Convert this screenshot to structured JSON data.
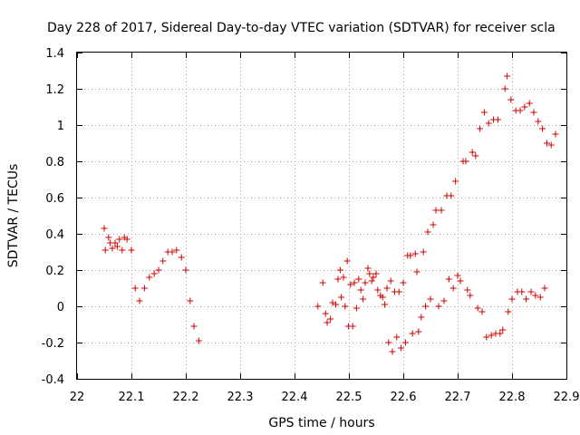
{
  "chart_data": {
    "type": "scatter",
    "title": "Day 228 of 2017, Sidereal Day-to-day VTEC variation (SDTVAR) for receiver scla",
    "xlabel": "GPS time / hours",
    "ylabel": "SDTVAR / TECUs",
    "xlim": [
      22,
      22.9
    ],
    "ylim": [
      -0.4,
      1.4
    ],
    "xticks": [
      "22",
      "22.1",
      "22.2",
      "22.3",
      "22.4",
      "22.5",
      "22.6",
      "22.7",
      "22.8",
      "22.9"
    ],
    "yticks": [
      "-0.4",
      "-0.2",
      "0",
      "0.2",
      "0.4",
      "0.6",
      "0.8",
      "1",
      "1.2",
      "1.4"
    ],
    "grid": true,
    "marker": "+",
    "color": "#d00000",
    "series": [
      {
        "name": "SDTVAR",
        "points": [
          [
            22.05,
            0.43
          ],
          [
            22.052,
            0.31
          ],
          [
            22.058,
            0.38
          ],
          [
            22.061,
            0.35
          ],
          [
            22.065,
            0.32
          ],
          [
            22.07,
            0.35
          ],
          [
            22.074,
            0.33
          ],
          [
            22.078,
            0.37
          ],
          [
            22.083,
            0.31
          ],
          [
            22.087,
            0.38
          ],
          [
            22.092,
            0.37
          ],
          [
            22.1,
            0.31
          ],
          [
            22.107,
            0.1
          ],
          [
            22.115,
            0.03
          ],
          [
            22.124,
            0.1
          ],
          [
            22.133,
            0.16
          ],
          [
            22.142,
            0.18
          ],
          [
            22.15,
            0.2
          ],
          [
            22.158,
            0.25
          ],
          [
            22.167,
            0.3
          ],
          [
            22.175,
            0.3
          ],
          [
            22.183,
            0.31
          ],
          [
            22.192,
            0.27
          ],
          [
            22.2,
            0.2
          ],
          [
            22.208,
            0.03
          ],
          [
            22.215,
            -0.11
          ],
          [
            22.224,
            -0.19
          ],
          [
            22.443,
            0.0
          ],
          [
            22.452,
            0.13
          ],
          [
            22.457,
            -0.04
          ],
          [
            22.46,
            -0.09
          ],
          [
            22.466,
            -0.07
          ],
          [
            22.47,
            0.02
          ],
          [
            22.476,
            0.01
          ],
          [
            22.48,
            0.15
          ],
          [
            22.484,
            0.2
          ],
          [
            22.486,
            0.05
          ],
          [
            22.49,
            0.16
          ],
          [
            22.493,
            0.0
          ],
          [
            22.497,
            0.25
          ],
          [
            22.499,
            -0.11
          ],
          [
            22.503,
            0.12
          ],
          [
            22.507,
            -0.11
          ],
          [
            22.51,
            0.13
          ],
          [
            22.514,
            -0.01
          ],
          [
            22.518,
            0.15
          ],
          [
            22.522,
            0.09
          ],
          [
            22.526,
            0.04
          ],
          [
            22.53,
            0.13
          ],
          [
            22.535,
            0.21
          ],
          [
            22.538,
            0.18
          ],
          [
            22.542,
            0.14
          ],
          [
            22.545,
            0.16
          ],
          [
            22.55,
            0.18
          ],
          [
            22.553,
            0.09
          ],
          [
            22.558,
            0.06
          ],
          [
            22.562,
            0.05
          ],
          [
            22.566,
            0.01
          ],
          [
            22.57,
            0.1
          ],
          [
            22.573,
            -0.2
          ],
          [
            22.577,
            0.14
          ],
          [
            22.58,
            -0.25
          ],
          [
            22.584,
            0.08
          ],
          [
            22.588,
            -0.17
          ],
          [
            22.592,
            0.08
          ],
          [
            22.596,
            -0.23
          ],
          [
            22.6,
            0.13
          ],
          [
            22.604,
            -0.2
          ],
          [
            22.608,
            0.28
          ],
          [
            22.613,
            0.28
          ],
          [
            22.617,
            -0.15
          ],
          [
            22.622,
            0.29
          ],
          [
            22.625,
            0.19
          ],
          [
            22.628,
            -0.14
          ],
          [
            22.633,
            -0.06
          ],
          [
            22.637,
            0.3
          ],
          [
            22.641,
            0.0
          ],
          [
            22.645,
            0.41
          ],
          [
            22.65,
            0.04
          ],
          [
            22.655,
            0.45
          ],
          [
            22.66,
            0.53
          ],
          [
            22.665,
            0.0
          ],
          [
            22.67,
            0.53
          ],
          [
            22.675,
            0.03
          ],
          [
            22.68,
            0.61
          ],
          [
            22.684,
            0.15
          ],
          [
            22.688,
            0.61
          ],
          [
            22.692,
            0.1
          ],
          [
            22.696,
            0.69
          ],
          [
            22.7,
            0.17
          ],
          [
            22.705,
            0.14
          ],
          [
            22.71,
            0.8
          ],
          [
            22.715,
            0.8
          ],
          [
            22.718,
            0.09
          ],
          [
            22.723,
            0.06
          ],
          [
            22.727,
            0.85
          ],
          [
            22.733,
            0.83
          ],
          [
            22.737,
            -0.01
          ],
          [
            22.741,
            0.98
          ],
          [
            22.745,
            -0.03
          ],
          [
            22.749,
            1.07
          ],
          [
            22.753,
            -0.17
          ],
          [
            22.757,
            1.01
          ],
          [
            22.762,
            -0.16
          ],
          [
            22.766,
            1.03
          ],
          [
            22.77,
            -0.15
          ],
          [
            22.774,
            1.03
          ],
          [
            22.778,
            -0.15
          ],
          [
            22.783,
            -0.13
          ],
          [
            22.787,
            1.2
          ],
          [
            22.791,
            1.27
          ],
          [
            22.793,
            -0.03
          ],
          [
            22.798,
            1.14
          ],
          [
            22.8,
            0.04
          ],
          [
            22.807,
            1.08
          ],
          [
            22.81,
            0.08
          ],
          [
            22.815,
            1.08
          ],
          [
            22.818,
            0.08
          ],
          [
            22.823,
            1.1
          ],
          [
            22.826,
            0.04
          ],
          [
            22.832,
            1.12
          ],
          [
            22.835,
            0.08
          ],
          [
            22.84,
            1.07
          ],
          [
            22.843,
            0.06
          ],
          [
            22.848,
            1.02
          ],
          [
            22.852,
            0.05
          ],
          [
            22.856,
            0.98
          ],
          [
            22.86,
            0.1
          ],
          [
            22.864,
            0.9
          ],
          [
            22.872,
            0.89
          ],
          [
            22.88,
            0.95
          ]
        ]
      }
    ]
  }
}
